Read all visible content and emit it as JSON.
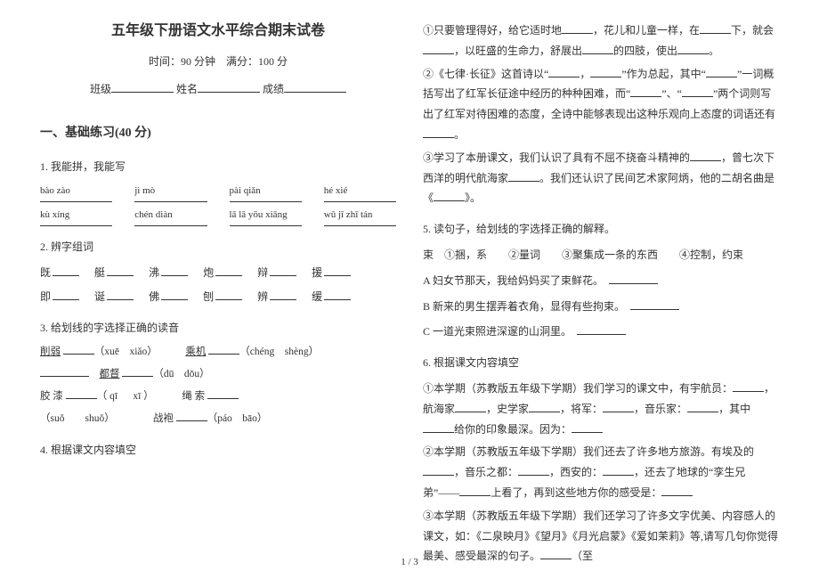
{
  "title": "五年级下册语文水平综合期末试卷",
  "time_score": "时间：90 分钟　满分：100 分",
  "info": {
    "class": "班级",
    "name": "姓名",
    "score": "成绩"
  },
  "section1": "一、基础练习(40 分)",
  "q1": "1. 我能拼，我能写",
  "pinyin_row1": [
    "bào zào",
    "jì mò",
    "pài qiǎn",
    "hé xié"
  ],
  "pinyin_row2": [
    "kù xíng",
    "chén diàn",
    "lā lā yōu xiāng",
    "wū jī zhī tán"
  ],
  "q2": "2. 辨字组词",
  "charset1": [
    "既",
    "艇",
    "沸",
    "炮",
    "辩",
    "援"
  ],
  "charset2": [
    "即",
    "诞",
    "佛",
    "刨",
    "辨",
    "缓"
  ],
  "q3": "3. 给划线的字选择正确的读音",
  "reading1a": "削弱",
  "reading1b": "（xuē　xiǎo）",
  "reading2a": "乘机",
  "reading2b": "（chéng　shèng）",
  "reading3a": "都督",
  "reading3b": "（dū　dōu）",
  "reading4a": "胶 漆",
  "reading4b": "（ qī 　 xī ）",
  "reading5a": "绳 索",
  "reading6a": "（suǒ　　shuǒ）",
  "reading7a": "战袍",
  "reading7b": "（páo　bāo）",
  "q4": "4. 根据课文内容填空",
  "p4_1": "①只要管理得好，给它适时地",
  "p4_1b": "，花儿和儿童一样，在",
  "p4_1c": "下，就会",
  "p4_1d": "，以旺盛的生命力，舒展出",
  "p4_1e": "的四肢，使出",
  "p4_2a": "②《七律·长征》这首诗以“",
  "p4_2b": "，",
  "p4_2c": "”作为总起，其中“",
  "p4_2d": "”一词概括写出了红军长征途中经历的种种困难，而“",
  "p4_2e": "”、“",
  "p4_2f": "”两个词则写出了红军对待困难的态度，全诗中能够表现出这种乐观向上态度的词语还有",
  "p4_3a": "③学习了本册课文，我们认识了具有不屈不挠奋斗精神的",
  "p4_3b": "，曾七次下西洋的明代航海家",
  "p4_3c": "。我们还认识了民间艺术家阿炳，他的二胡名曲是《",
  "p4_3d": "》。",
  "q5": "5. 读句子，给划线的字选择正确的解释。",
  "q5opts": "束　①捆，系　　②量词　　③聚集成一条的东西　　④控制，约束",
  "q5a": "A 妇女节那天，我给妈妈买了束鲜花。",
  "q5b": "B 新来的男生摆弄着衣角，显得有些拘束。",
  "q5c": "C 一道光束照进深邃的山洞里。",
  "q6": "6. 根据课文内容填空",
  "q6_1a": "①本学期（苏教版五年级下学期）我们学习的课文中，有宇航员：",
  "q6_1b": "，航海家",
  "q6_1c": "，史学家",
  "q6_1d": "，将军：",
  "q6_1e": "，音乐家：",
  "q6_1f": "，其中",
  "q6_1g": "给你的印象最深。因为：",
  "q6_2a": "②本学期（苏教版五年级下学期）我们还去了许多地方旅游。有埃及的",
  "q6_2b": "，音乐之都：",
  "q6_2c": "，西安的：",
  "q6_2d": "，还去了地球的“孪生兄弟”——",
  "q6_2e": "上看了，再到这些地方你的感受是：",
  "q6_3a": "③本学期（苏教版五年级下学期）我们还学习了许多文字优美、内容感人的课文，如：《二泉映月》《望月》《月光启蒙》《爱如茉莉》等,请写几句你觉得最美、感受最深的句子。",
  "q6_3b": "（至",
  "page": "1 / 3"
}
